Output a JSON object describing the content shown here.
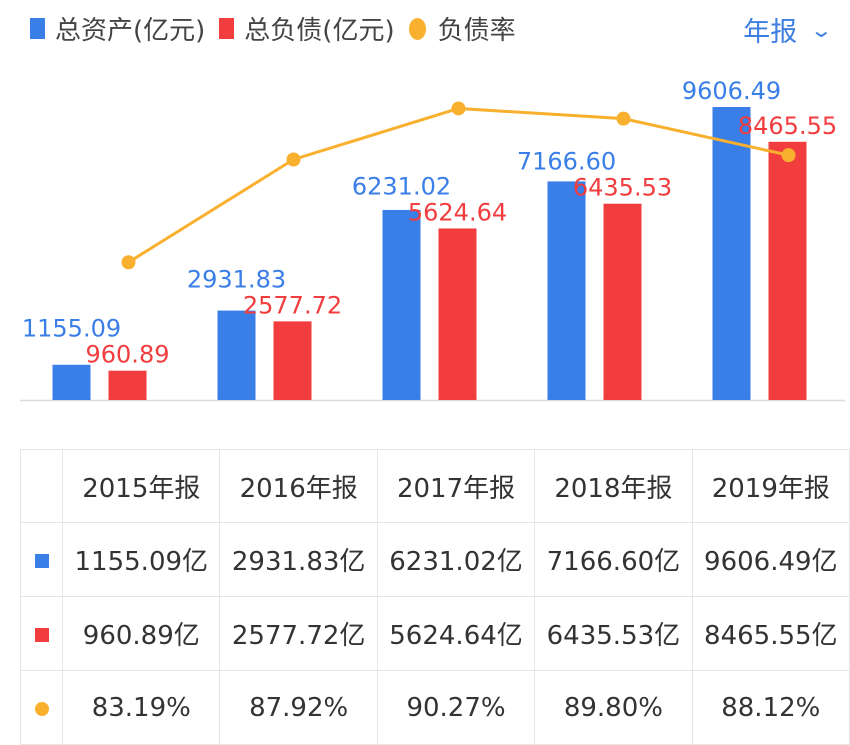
{
  "header": {
    "period_selector": {
      "label": "年报",
      "icon": "chevron-down-icon"
    }
  },
  "legend": [
    {
      "label": "总资产(亿元)",
      "color": "#3a7ee8",
      "shape": "square"
    },
    {
      "label": "总负债(亿元)",
      "color": "#f23d3f",
      "shape": "square"
    },
    {
      "label": "负债率",
      "color": "#f9b02e",
      "shape": "circle"
    }
  ],
  "chart_data": {
    "type": "bar",
    "categories": [
      "2015年报",
      "2016年报",
      "2017年报",
      "2018年报",
      "2019年报"
    ],
    "series": [
      {
        "name": "总资产(亿元)",
        "type": "bar",
        "color": "#3a7ee8",
        "values": [
          1155.09,
          2931.83,
          6231.02,
          7166.6,
          9606.49
        ],
        "labels": [
          "1155.09",
          "2931.83",
          "6231.02",
          "7166.60",
          "9606.49"
        ]
      },
      {
        "name": "总负债(亿元)",
        "type": "bar",
        "color": "#f23d3f",
        "values": [
          960.89,
          2577.72,
          5624.64,
          6435.53,
          8465.55
        ],
        "labels": [
          "960.89",
          "2577.72",
          "5624.64",
          "6435.53",
          "8465.55"
        ]
      },
      {
        "name": "负债率",
        "type": "line",
        "color": "#f9b02e",
        "unit": "%",
        "values": [
          83.19,
          87.92,
          90.27,
          89.8,
          88.12
        ]
      }
    ],
    "ylim": [
      0,
      9606.49
    ],
    "line_ylim": [
      76.85,
      92.5
    ],
    "grid": false,
    "legend_position": "top-left"
  },
  "table": {
    "headers": [
      "2015年报",
      "2016年报",
      "2017年报",
      "2018年报",
      "2019年报"
    ],
    "rows": [
      {
        "marker": "square",
        "color": "#3a7ee8",
        "cells": [
          "1155.09亿",
          "2931.83亿",
          "6231.02亿",
          "7166.60亿",
          "9606.49亿"
        ]
      },
      {
        "marker": "square",
        "color": "#f23d3f",
        "cells": [
          "960.89亿",
          "2577.72亿",
          "5624.64亿",
          "6435.53亿",
          "8465.55亿"
        ]
      },
      {
        "marker": "circle",
        "color": "#f9b02e",
        "cells": [
          "83.19%",
          "87.92%",
          "90.27%",
          "89.80%",
          "88.12%"
        ]
      }
    ]
  }
}
